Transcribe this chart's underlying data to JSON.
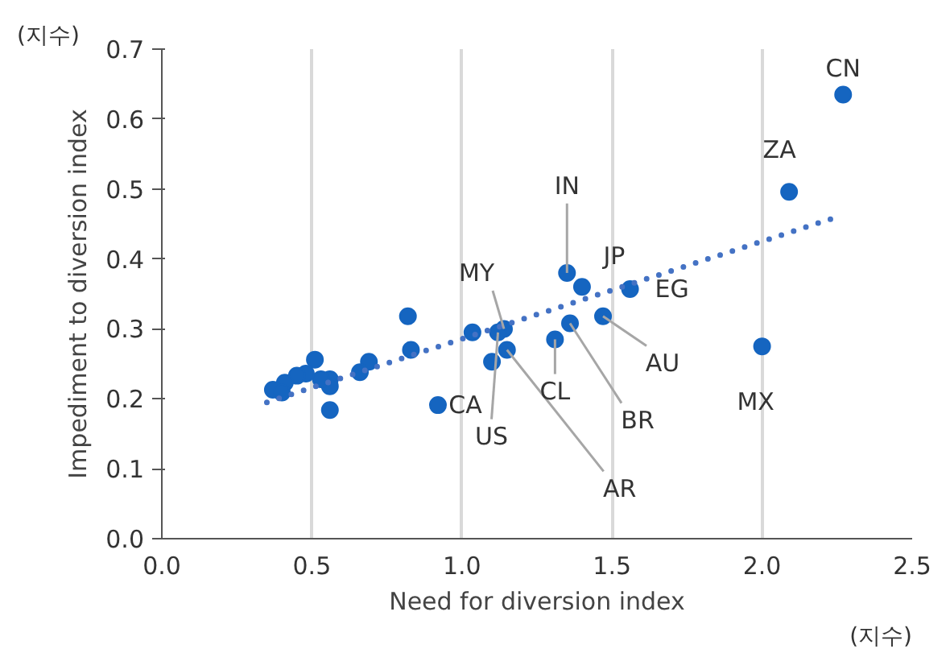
{
  "chart_data": {
    "type": "scatter",
    "xlabel": "Need for diversion index",
    "ylabel": "Impediment to diversion index",
    "xlim": [
      0,
      2.5
    ],
    "ylim": [
      0,
      0.7
    ],
    "xticks": [
      {
        "value": 0,
        "label": "0.0"
      },
      {
        "value": 0.5,
        "label": "0.5"
      },
      {
        "value": 1,
        "label": "1.0"
      },
      {
        "value": 1.5,
        "label": "1.5"
      },
      {
        "value": 2,
        "label": "2.0"
      },
      {
        "value": 2.5,
        "label": "2.5"
      }
    ],
    "yticks": [
      {
        "value": 0,
        "label": "0.0"
      },
      {
        "value": 0.1,
        "label": "0.1"
      },
      {
        "value": 0.2,
        "label": "0.2"
      },
      {
        "value": 0.3,
        "label": "0.3"
      },
      {
        "value": 0.4,
        "label": "0.4"
      },
      {
        "value": 0.5,
        "label": "0.5"
      },
      {
        "value": 0.6,
        "label": "0.6"
      },
      {
        "value": 0.7,
        "label": "0.7"
      }
    ],
    "grid": "x",
    "marker": "circle",
    "series": [
      {
        "type": "scatter",
        "color": "#1565c0",
        "x": [
          2.27,
          2.09,
          2.0,
          1.35,
          1.4,
          1.56,
          1.47,
          1.36,
          1.31,
          1.14,
          1.12,
          1.15,
          1.1,
          1.035,
          0.92,
          0.82,
          0.83,
          0.69,
          0.66,
          0.56,
          0.56,
          0.56,
          0.51,
          0.53,
          0.48,
          0.45,
          0.41,
          0.37,
          0.4
        ],
        "values": [
          0.635,
          0.496,
          0.275,
          0.38,
          0.36,
          0.357,
          0.318,
          0.308,
          0.285,
          0.3,
          0.295,
          0.27,
          0.253,
          0.295,
          0.191,
          0.318,
          0.27,
          0.253,
          0.238,
          0.184,
          0.228,
          0.218,
          0.256,
          0.228,
          0.236,
          0.233,
          0.223,
          0.213,
          0.209
        ]
      },
      {
        "type": "line",
        "color": "#4472c4",
        "line_style": "dotted",
        "marker": "none",
        "x": [
          0.35,
          2.25
        ],
        "values": [
          0.195,
          0.46
        ]
      }
    ],
    "annotations": [
      {
        "text": "CN",
        "x": 2.27,
        "y": 0.635
      },
      {
        "text": "ZA",
        "x": 2.09,
        "y": 0.496
      },
      {
        "text": "MX",
        "x": 2.0,
        "y": 0.275
      },
      {
        "text": "IN",
        "x": 1.35,
        "y": 0.38
      },
      {
        "text": "JP",
        "x": 1.4,
        "y": 0.36
      },
      {
        "text": "EG",
        "x": 1.56,
        "y": 0.357
      },
      {
        "text": "AU",
        "x": 1.47,
        "y": 0.318
      },
      {
        "text": "BR",
        "x": 1.36,
        "y": 0.308
      },
      {
        "text": "CL",
        "x": 1.31,
        "y": 0.285
      },
      {
        "text": "MY",
        "x": 1.14,
        "y": 0.3
      },
      {
        "text": "AR",
        "x": 1.15,
        "y": 0.27
      },
      {
        "text": "US",
        "x": 1.12,
        "y": 0.295
      },
      {
        "text": "CA",
        "x": 0.92,
        "y": 0.191
      },
      "(지수)",
      "(지수)"
    ]
  }
}
